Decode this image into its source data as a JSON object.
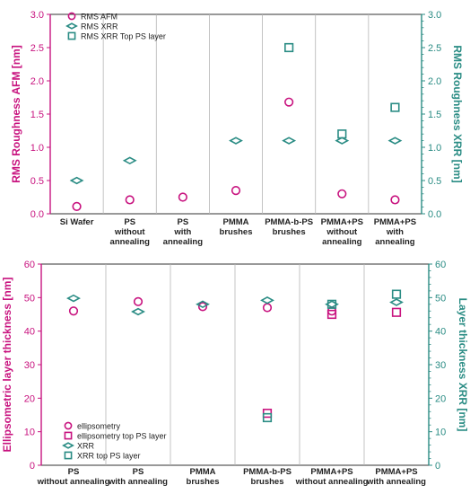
{
  "colors": {
    "magenta": "#c8137f",
    "teal": "#2a8c84",
    "axis": "#333333",
    "grid": "#b5b5b5"
  },
  "chart_data": [
    {
      "type": "scatter",
      "categories": [
        [
          "Si Wafer"
        ],
        [
          "PS",
          "without",
          "annealing"
        ],
        [
          "PS",
          "with",
          "annealing"
        ],
        [
          "PMMA",
          "brushes"
        ],
        [
          "PMMA-b-PS",
          "brushes"
        ],
        [
          "PMMA+PS",
          "without",
          "annealing"
        ],
        [
          "PMMA+PS",
          "with",
          "annealing"
        ]
      ],
      "ylabel_left": "RMS Roughness AFM [nm]",
      "ylabel_right": "RMS Roughness XRR [nm]",
      "ylim": [
        0,
        3.0
      ],
      "yticks": [
        "0.0",
        "0.5",
        "1.0",
        "1.5",
        "2.0",
        "2.5",
        "3.0"
      ],
      "grid": "vertical category separators",
      "legend_position": "top-left",
      "series": [
        {
          "name": "RMS AFM",
          "marker": "circle",
          "color": "magenta",
          "values": [
            0.11,
            0.21,
            0.25,
            0.35,
            1.68,
            0.3,
            0.21
          ]
        },
        {
          "name": "RMS XRR",
          "marker": "diamond",
          "color": "teal",
          "values": [
            0.5,
            0.8,
            null,
            1.1,
            1.1,
            1.1,
            1.1
          ]
        },
        {
          "name": "RMS XRR Top PS layer",
          "marker": "square",
          "color": "teal",
          "values": [
            null,
            null,
            null,
            null,
            2.5,
            1.2,
            1.6
          ]
        }
      ]
    },
    {
      "type": "scatter",
      "categories": [
        [
          "PS",
          "without annealing"
        ],
        [
          "PS",
          "with annealing"
        ],
        [
          "PMMA",
          "brushes"
        ],
        [
          "PMMA-b-PS",
          "brushes"
        ],
        [
          "PMMA+PS",
          "without annealing"
        ],
        [
          "PMMA+PS",
          "with annealing"
        ]
      ],
      "ylabel_left": "Ellipsometric layer thickness [nm]",
      "ylabel_right": "Layer thickness XRR [nm]",
      "ylim": [
        0,
        60
      ],
      "yticks": [
        "0",
        "10",
        "20",
        "30",
        "40",
        "50",
        "60"
      ],
      "grid": "vertical category separators",
      "legend_position": "bottom-left",
      "series": [
        {
          "name": "ellipsometry",
          "marker": "circle",
          "color": "magenta",
          "values": [
            46.0,
            48.8,
            47.3,
            47.0,
            46.0,
            null
          ]
        },
        {
          "name": "ellipsometry top PS layer",
          "marker": "square",
          "color": "magenta",
          "values": [
            null,
            null,
            null,
            15.5,
            45.0,
            45.6
          ]
        },
        {
          "name": "XRR",
          "marker": "diamond",
          "color": "teal",
          "values": [
            49.8,
            45.8,
            48.0,
            49.2,
            48.0,
            48.6
          ]
        },
        {
          "name": "XRR top PS layer",
          "marker": "square",
          "color": "teal",
          "values": [
            null,
            null,
            null,
            14.2,
            48.0,
            51.0
          ]
        }
      ]
    }
  ]
}
